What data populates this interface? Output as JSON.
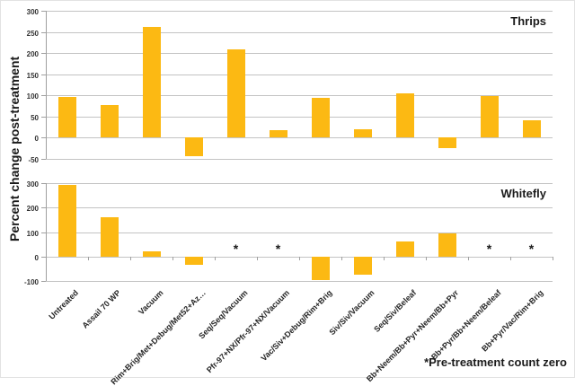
{
  "colors": {
    "bar": "#FCB913",
    "gridline": "#C3C3C3",
    "axis": "#A0A0A0",
    "tick_text": "#333333",
    "label_text": "#1A1A1A"
  },
  "chart_data": {
    "type": "bar",
    "ylabel": "Percent change post-treatment",
    "annotation": "*Pre-treatment count zero",
    "grid": true,
    "legend": false,
    "categories": [
      "Untreated",
      "Assail 70 WP",
      "Vacuum",
      "Rim+Brig/Met+Debug/Met52+Az…",
      "Seq/Seq/Vacuum",
      "Pfr-97+NX/Pfr-97+NX/Vacuum",
      "Vac/Siv+Debug/Rim+Brig",
      "Siv/Siv/Vacuum",
      "Seq/Siv/Beleaf",
      "Bb+Neem/Bb+Pyr+Neem/Bb+Pyr",
      "Bb+Pyr/Bb+Neem/Beleaf",
      "Bb+Pyr/Vac/Rim+Brig"
    ],
    "panels": [
      {
        "title": "Thrips",
        "values": [
          97,
          77,
          261,
          -43,
          208,
          18,
          94,
          20,
          105,
          -24,
          98,
          41
        ],
        "asterisks": [
          false,
          false,
          false,
          false,
          false,
          false,
          false,
          false,
          false,
          false,
          false,
          false
        ],
        "ylim": [
          -50,
          300
        ],
        "yticks": [
          300,
          250,
          200,
          150,
          100,
          50,
          0,
          -50
        ]
      },
      {
        "title": "Whitefly",
        "values": [
          293,
          160,
          20,
          -35,
          null,
          null,
          -97,
          -73,
          62,
          95,
          null,
          null
        ],
        "asterisks": [
          false,
          false,
          false,
          false,
          true,
          true,
          false,
          false,
          false,
          false,
          true,
          true
        ],
        "ylim": [
          -100,
          300
        ],
        "yticks": [
          300,
          200,
          100,
          0,
          -100
        ]
      }
    ]
  }
}
